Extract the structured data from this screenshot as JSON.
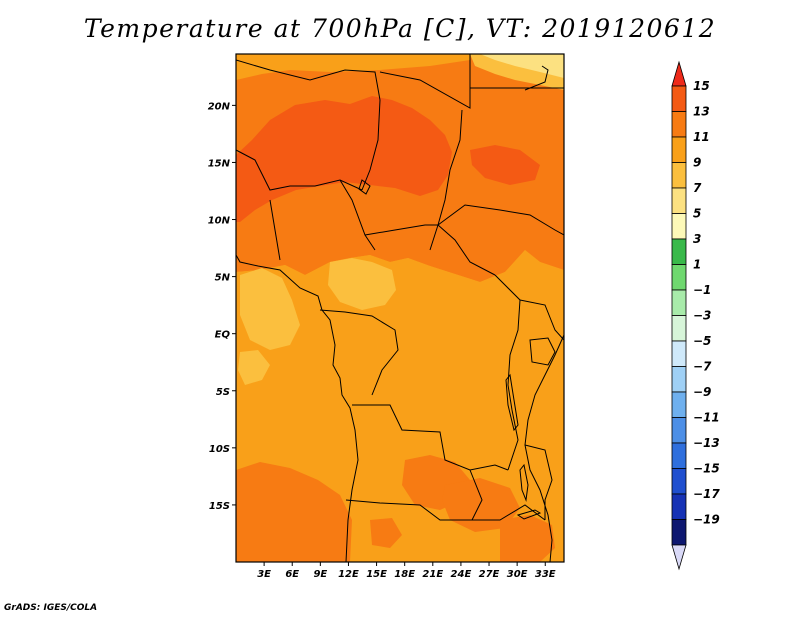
{
  "title": "Temperature at 700hPa [C], VT: 2019120612",
  "credit": "GrADS: IGES/COLA",
  "map": {
    "lon_range": [
      0,
      35
    ],
    "lat_range": [
      -20,
      24.5
    ],
    "lat_ticks": [
      {
        "value": 20,
        "label": "20N"
      },
      {
        "value": 15,
        "label": "15N"
      },
      {
        "value": 10,
        "label": "10N"
      },
      {
        "value": 5,
        "label": "5N"
      },
      {
        "value": 0,
        "label": "EQ"
      },
      {
        "value": -5,
        "label": "5S"
      },
      {
        "value": -10,
        "label": "10S"
      },
      {
        "value": -15,
        "label": "15S"
      }
    ],
    "lon_ticks": [
      {
        "value": 3,
        "label": "3E"
      },
      {
        "value": 6,
        "label": "6E"
      },
      {
        "value": 9,
        "label": "9E"
      },
      {
        "value": 12,
        "label": "12E"
      },
      {
        "value": 15,
        "label": "15E"
      },
      {
        "value": 18,
        "label": "18E"
      },
      {
        "value": 21,
        "label": "21E"
      },
      {
        "value": 24,
        "label": "24E"
      },
      {
        "value": 27,
        "label": "27E"
      },
      {
        "value": 30,
        "label": "30E"
      },
      {
        "value": 33,
        "label": "33E"
      }
    ]
  },
  "colorbar": {
    "labels": [
      "15",
      "13",
      "11",
      "9",
      "7",
      "5",
      "3",
      "1",
      "−1",
      "−3",
      "−5",
      "−7",
      "−9",
      "−11",
      "−13",
      "−15",
      "−17",
      "−19"
    ],
    "colors": [
      "#ee2a1a",
      "#f45a14",
      "#f77b13",
      "#f9a019",
      "#fbbf3e",
      "#fce181",
      "#fdf9b8",
      "#39b94a",
      "#6fd86f",
      "#a8ebaa",
      "#d7f5d9",
      "#cfe9fa",
      "#9fd0f5",
      "#6fb0ee",
      "#4d8fe6",
      "#2f6fdd",
      "#1f4fcf",
      "#1632b5",
      "#0d1770",
      "#d9d9f7"
    ]
  }
}
